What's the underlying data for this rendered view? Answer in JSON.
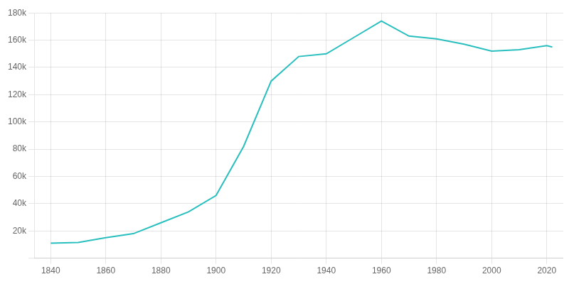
{
  "chart_data": {
    "type": "line",
    "x": [
      1840,
      1850,
      1860,
      1870,
      1880,
      1890,
      1900,
      1910,
      1920,
      1930,
      1940,
      1950,
      1960,
      1970,
      1980,
      1990,
      2000,
      2010,
      2020,
      2022
    ],
    "values": [
      11000,
      11500,
      15000,
      18000,
      26000,
      34000,
      46000,
      82000,
      130000,
      148000,
      150000,
      162000,
      174000,
      163000,
      161000,
      157000,
      152000,
      153000,
      156000,
      155000
    ],
    "color": "#2abfbf",
    "xlim": [
      1834,
      2026
    ],
    "xticks": [
      1840,
      1860,
      1880,
      1900,
      1920,
      1940,
      1960,
      1980,
      2000,
      2020
    ],
    "ylim": [
      0,
      180000
    ],
    "yticks": [
      {
        "value": 0,
        "label": null
      },
      {
        "value": 20000,
        "label": "20k"
      },
      {
        "value": 40000,
        "label": "40k"
      },
      {
        "value": 60000,
        "label": "60k"
      },
      {
        "value": 80000,
        "label": "80k"
      },
      {
        "value": 100000,
        "label": "100k"
      },
      {
        "value": 120000,
        "label": "120k"
      },
      {
        "value": 140000,
        "label": "140k"
      },
      {
        "value": 160000,
        "label": "160k"
      },
      {
        "value": 180000,
        "label": "180k"
      }
    ],
    "grid": true
  }
}
